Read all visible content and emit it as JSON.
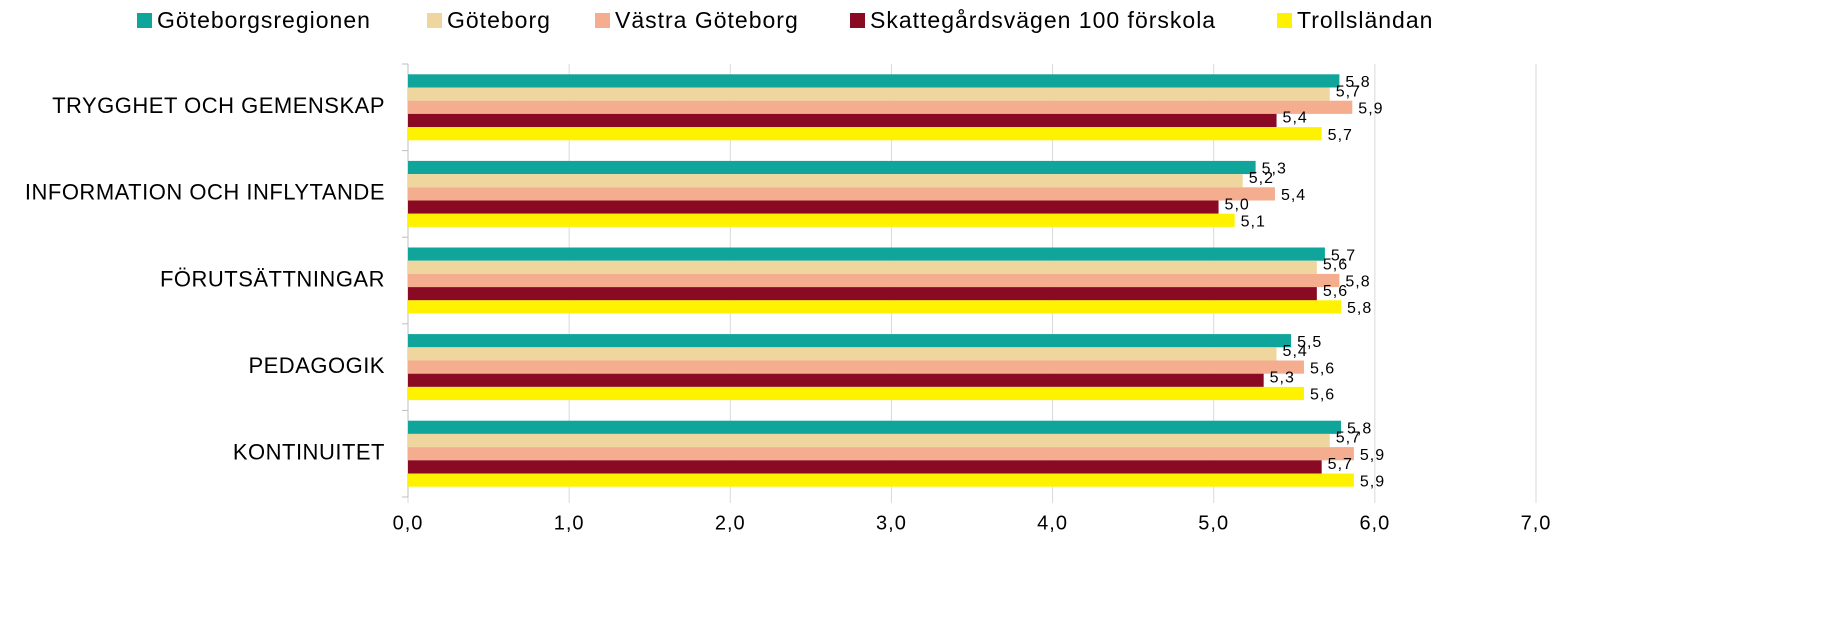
{
  "chart_data": {
    "type": "barh",
    "categories": [
      "TRYGGHET OCH GEMENSKAP",
      "INFORMATION OCH INFLYTANDE",
      "FÖRUTSÄTTNINGAR",
      "PEDAGOGIK",
      "KONTINUITET"
    ],
    "series": [
      {
        "name": "Göteborgsregionen",
        "color": "#10a59b",
        "values": [
          5.78,
          5.26,
          5.69,
          5.48,
          5.79
        ],
        "value_labels": [
          "5,8",
          "5,3",
          "5,7",
          "5,5",
          "5,8"
        ]
      },
      {
        "name": "Göteborg",
        "color": "#eed69e",
        "values": [
          5.72,
          5.18,
          5.64,
          5.39,
          5.72
        ],
        "value_labels": [
          "5,7",
          "5,2",
          "5,6",
          "5,4",
          "5,7"
        ]
      },
      {
        "name": "Västra Göteborg",
        "color": "#f5ad8f",
        "values": [
          5.86,
          5.38,
          5.78,
          5.56,
          5.87
        ],
        "value_labels": [
          "5,9",
          "5,4",
          "5,8",
          "5,6",
          "5,9"
        ]
      },
      {
        "name": "Skattegårdsvägen 100 förskola",
        "color": "#8a0a24",
        "values": [
          5.39,
          5.03,
          5.64,
          5.31,
          5.67
        ],
        "value_labels": [
          "5,4",
          "5,0",
          "5,6",
          "5,3",
          "5,7"
        ]
      },
      {
        "name": "Trollsländan",
        "color": "#fff200",
        "values": [
          5.67,
          5.13,
          5.79,
          5.56,
          5.87
        ],
        "value_labels": [
          "5,7",
          "5,1",
          "5,8",
          "5,6",
          "5,9"
        ]
      }
    ],
    "xlim": [
      0,
      7
    ],
    "xticks": [
      {
        "value": 0,
        "label": "0,0"
      },
      {
        "value": 1,
        "label": "1,0"
      },
      {
        "value": 2,
        "label": "2,0"
      },
      {
        "value": 3,
        "label": "3,0"
      },
      {
        "value": 4,
        "label": "4,0"
      },
      {
        "value": 5,
        "label": "5,0"
      },
      {
        "value": 6,
        "label": "6,0"
      },
      {
        "value": 7,
        "label": "7,0"
      }
    ],
    "grid": true,
    "legend": "top"
  }
}
